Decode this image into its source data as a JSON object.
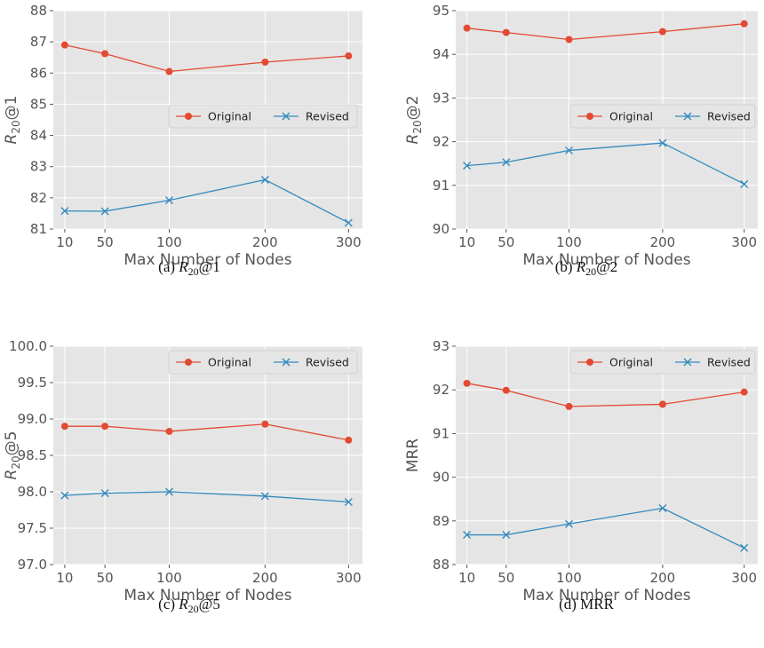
{
  "colors": {
    "original": "#E24A33",
    "revised": "#348ABD",
    "panel_bg": "#E5E5E5",
    "grid": "#FFFFFF"
  },
  "chart_data": [
    {
      "type": "line",
      "caption": "(a) R20@1",
      "xlabel": "Max Number of Nodes",
      "ylabel": "R20@1",
      "x": [
        10,
        50,
        100,
        200,
        300
      ],
      "x_ticks": [
        "10",
        "50",
        "100",
        "200",
        "300"
      ],
      "ylim": [
        81,
        88
      ],
      "y_ticks": [
        "81",
        "82",
        "83",
        "84",
        "85",
        "86",
        "87",
        "88"
      ],
      "legend_position": "center-right",
      "grid": true,
      "series": [
        {
          "name": "Original",
          "marker": "circle",
          "values": [
            86.9,
            86.62,
            86.05,
            86.35,
            86.55
          ]
        },
        {
          "name": "Revised",
          "marker": "x",
          "values": [
            81.58,
            81.57,
            81.92,
            82.58,
            81.2
          ]
        }
      ]
    },
    {
      "type": "line",
      "caption": "(b) R20@2",
      "xlabel": "Max Number of Nodes",
      "ylabel": "R20@2",
      "x": [
        10,
        50,
        100,
        200,
        300
      ],
      "x_ticks": [
        "10",
        "50",
        "100",
        "200",
        "300"
      ],
      "ylim": [
        90,
        95
      ],
      "y_ticks": [
        "90",
        "91",
        "92",
        "93",
        "94",
        "95"
      ],
      "legend_position": "center-right",
      "grid": true,
      "series": [
        {
          "name": "Original",
          "marker": "circle",
          "values": [
            94.6,
            94.5,
            94.34,
            94.52,
            94.7
          ]
        },
        {
          "name": "Revised",
          "marker": "x",
          "values": [
            91.45,
            91.53,
            91.8,
            91.97,
            91.03
          ]
        }
      ]
    },
    {
      "type": "line",
      "caption": "(c) R20@5",
      "xlabel": "Max Number of Nodes",
      "ylabel": "R20@5",
      "x": [
        10,
        50,
        100,
        200,
        300
      ],
      "x_ticks": [
        "10",
        "50",
        "100",
        "200",
        "300"
      ],
      "ylim": [
        97.0,
        100.0
      ],
      "y_ticks": [
        "97.0",
        "97.5",
        "98.0",
        "98.5",
        "99.0",
        "99.5",
        "100.0"
      ],
      "legend_position": "top-right",
      "grid": true,
      "series": [
        {
          "name": "Original",
          "marker": "circle",
          "values": [
            98.9,
            98.9,
            98.83,
            98.93,
            98.71
          ]
        },
        {
          "name": "Revised",
          "marker": "x",
          "values": [
            97.95,
            97.98,
            98.0,
            97.94,
            97.86
          ]
        }
      ]
    },
    {
      "type": "line",
      "caption": "(d) MRR",
      "xlabel": "Max Number of Nodes",
      "ylabel": "MRR",
      "x": [
        10,
        50,
        100,
        200,
        300
      ],
      "x_ticks": [
        "10",
        "50",
        "100",
        "200",
        "300"
      ],
      "ylim": [
        88,
        93
      ],
      "y_ticks": [
        "88",
        "89",
        "90",
        "91",
        "92",
        "93"
      ],
      "legend_position": "top-right",
      "grid": true,
      "series": [
        {
          "name": "Original",
          "marker": "circle",
          "values": [
            92.15,
            91.99,
            91.62,
            91.67,
            91.95
          ]
        },
        {
          "name": "Revised",
          "marker": "x",
          "values": [
            88.68,
            88.68,
            88.93,
            89.29,
            88.38
          ]
        }
      ]
    }
  ]
}
